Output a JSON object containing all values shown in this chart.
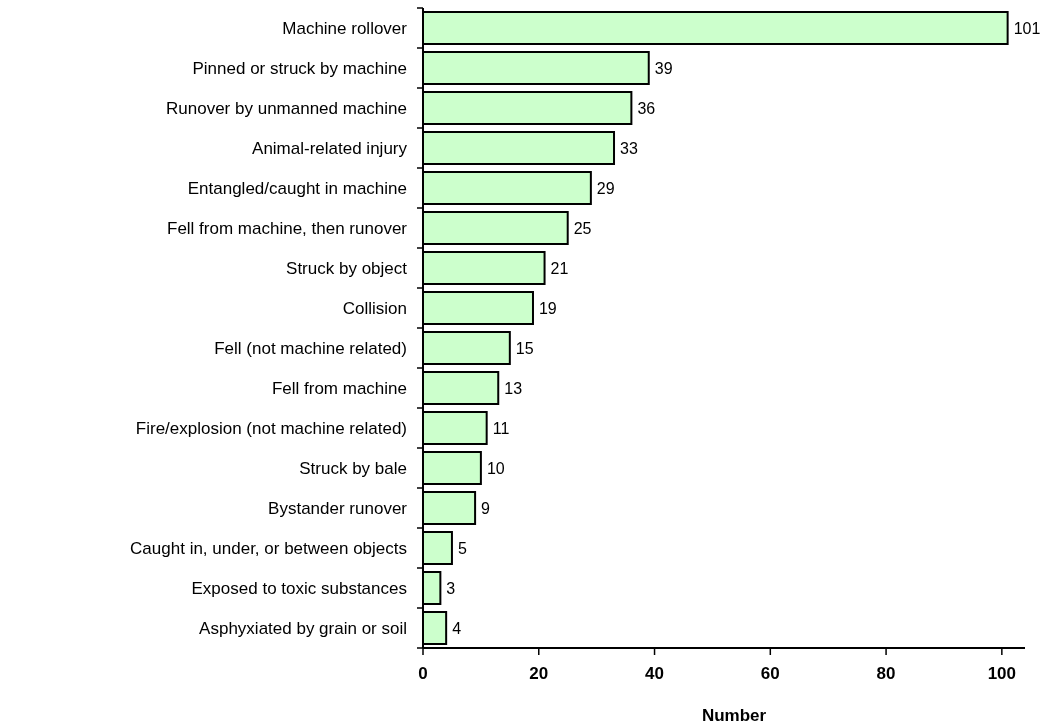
{
  "chart_data": {
    "type": "bar",
    "orientation": "horizontal",
    "xlabel": "Number",
    "categories": [
      "Machine rollover",
      "Pinned or struck by machine",
      "Runover by unmanned machine",
      "Animal-related injury",
      "Entangled/caught in machine",
      "Fell from machine, then runover",
      "Struck by object",
      "Collision",
      "Fell (not machine related)",
      "Fell from machine",
      "Fire/explosion (not machine related)",
      "Struck by bale",
      "Bystander runover",
      "Caught in, under, or between objects",
      "Exposed to toxic substances",
      "Asphyxiated by grain or soil"
    ],
    "values": [
      101,
      39,
      36,
      33,
      29,
      25,
      21,
      19,
      15,
      13,
      11,
      10,
      9,
      5,
      3,
      4
    ],
    "color": "#ccffcc",
    "xlim": [
      0,
      104
    ],
    "xticks": [
      0,
      20,
      40,
      60,
      80,
      100
    ],
    "data_labels": true,
    "grid": false
  }
}
